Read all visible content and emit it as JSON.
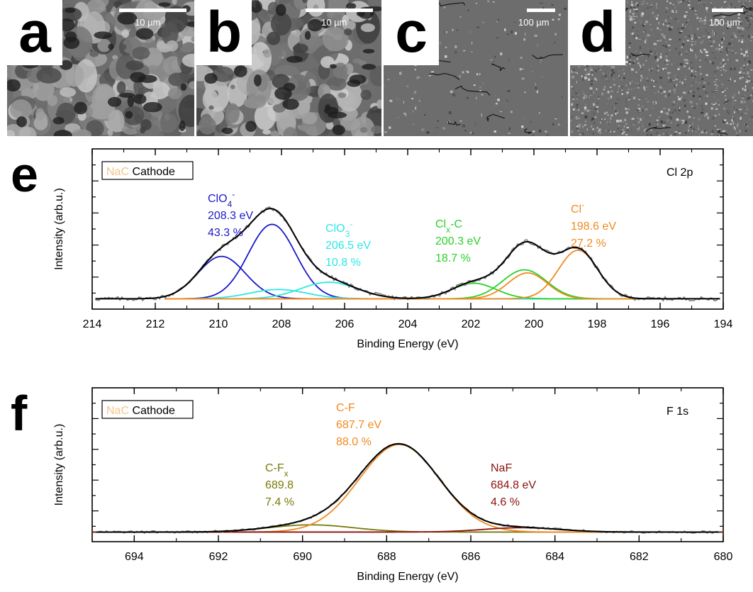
{
  "sem_panels": [
    {
      "letter": "a",
      "scale_label": "10 µm"
    },
    {
      "letter": "b",
      "scale_label": "10 µm"
    },
    {
      "letter": "c",
      "scale_label": "100 µm"
    },
    {
      "letter": "d",
      "scale_label": "100 µm"
    }
  ],
  "colors": {
    "data": "#808080",
    "envelope": "#000000",
    "clo4": "#1a1ac8",
    "clo3": "#2ee6e6",
    "clxc": "#2ad12a",
    "cl": "#f08a1e",
    "cf": "#f08a1e",
    "cfx": "#7a7a0a",
    "naf": "#8b1010",
    "nac": "#f4c48a"
  },
  "chart_data": [
    {
      "type": "line",
      "panel_letter": "e",
      "legend": {
        "prefix": "NaC",
        "suffix": " Cathode"
      },
      "corner_label": "Cl 2p",
      "xlabel": "Binding Energy (eV)",
      "ylabel": "Intensity (arb.u.)",
      "xlim": [
        214,
        194
      ],
      "ylim": [
        -0.1,
        1.45
      ],
      "x_ticks": [
        "214",
        "212",
        "210",
        "208",
        "206",
        "204",
        "202",
        "200",
        "198",
        "196",
        "194"
      ],
      "x_range": [
        211.7,
        195.3
      ],
      "peaks": [
        {
          "component": "clo4",
          "center": 209.9,
          "height": 0.41,
          "sigma": 0.75
        },
        {
          "component": "clo4",
          "center": 208.3,
          "height": 0.72,
          "sigma": 0.75
        },
        {
          "component": "clo3",
          "center": 208.1,
          "height": 0.09,
          "sigma": 0.9
        },
        {
          "component": "clo3",
          "center": 206.5,
          "height": 0.16,
          "sigma": 0.9
        },
        {
          "component": "clxc",
          "center": 201.9,
          "height": 0.15,
          "sigma": 0.7
        },
        {
          "component": "clxc",
          "center": 200.3,
          "height": 0.28,
          "sigma": 0.7
        },
        {
          "component": "cl",
          "center": 200.2,
          "height": 0.25,
          "sigma": 0.62
        },
        {
          "component": "cl",
          "center": 198.6,
          "height": 0.47,
          "sigma": 0.62
        }
      ],
      "annotations": [
        {
          "component": "clo4",
          "label": "ClO",
          "sub": "4",
          "sup": "-",
          "energy": "208.3 eV",
          "percent": "43.3 %"
        },
        {
          "component": "clo3",
          "label": "ClO",
          "sub": "3",
          "sup": "-",
          "energy": "206.5 eV",
          "percent": "10.8 %"
        },
        {
          "component": "clxc",
          "label": "Cl",
          "sub": "x",
          "after": "-C",
          "energy": "200.3 eV",
          "percent": "18.7 %"
        },
        {
          "component": "cl",
          "label": "Cl",
          "sup": "-",
          "energy": "198.6 eV",
          "percent": "27.2 %"
        }
      ]
    },
    {
      "type": "line",
      "panel_letter": "f",
      "legend": {
        "prefix": "NaC",
        "suffix": " Cathode"
      },
      "corner_label": "F 1s",
      "xlabel": "Binding Energy (eV)",
      "ylabel": "Intensity (arb.u.)",
      "xlim": [
        695,
        680
      ],
      "ylim": [
        -0.1,
        1.5
      ],
      "x_ticks": [
        "694",
        "692",
        "690",
        "688",
        "686",
        "684",
        "682",
        "680"
      ],
      "x_range": [
        695,
        680
      ],
      "peaks": [
        {
          "component": "cfx",
          "center": 689.8,
          "height": 0.075,
          "sigma": 1.0
        },
        {
          "component": "cf",
          "center": 687.7,
          "height": 0.91,
          "sigma": 0.95
        },
        {
          "component": "naf",
          "center": 684.8,
          "height": 0.045,
          "sigma": 0.9
        }
      ],
      "annotations": [
        {
          "component": "cf",
          "label": "C-F",
          "energy": "687.7 eV",
          "percent": "88.0 %"
        },
        {
          "component": "cfx",
          "label": "C-F",
          "sub": "x",
          "energy": "689.8",
          "percent": "7.4 %"
        },
        {
          "component": "naf",
          "label": "NaF",
          "energy": "684.8 eV",
          "percent": "4.6 %"
        }
      ]
    }
  ]
}
